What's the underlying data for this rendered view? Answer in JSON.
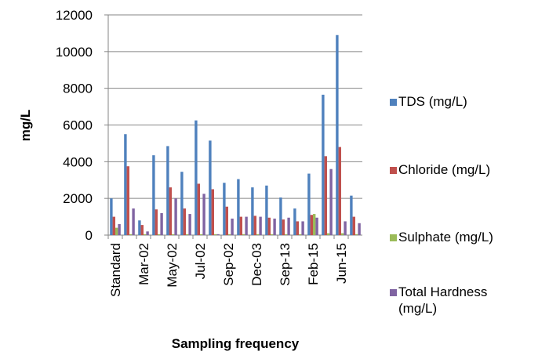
{
  "chart_data": {
    "type": "bar",
    "x_label": "Sampling frequency",
    "y_label": "mg/L",
    "categories": [
      "Standard",
      null,
      "Mar-02",
      null,
      "May-02",
      null,
      "Jul-02",
      null,
      "Sep-02",
      null,
      "Dec-03",
      null,
      "Sep-13",
      null,
      "Feb-15",
      null,
      "Jun-15",
      null
    ],
    "series": [
      {
        "name": "TDS (mg/L)",
        "color": "#4f81bd",
        "values": [
          2000,
          5500,
          800,
          4350,
          4850,
          3450,
          6250,
          5150,
          2850,
          3050,
          2600,
          2700,
          2050,
          1450,
          3350,
          7650,
          10900,
          2150
        ]
      },
      {
        "name": "Chloride (mg/L)",
        "color": "#c0504d",
        "values": [
          1000,
          3750,
          550,
          1400,
          2600,
          1450,
          2800,
          2500,
          1550,
          1000,
          1050,
          950,
          850,
          750,
          1100,
          4300,
          4800,
          1000
        ]
      },
      {
        "name": "Sulphate (mg/L)",
        "color": "#9bbb59",
        "values": [
          400,
          50,
          50,
          50,
          50,
          50,
          50,
          50,
          50,
          50,
          50,
          50,
          50,
          50,
          1150,
          100,
          100,
          50
        ]
      },
      {
        "name": "Total Hardness (mg/L)",
        "color": "#8064a2",
        "values": [
          600,
          1450,
          200,
          1200,
          2000,
          1150,
          2250,
          50,
          900,
          1000,
          1000,
          900,
          950,
          750,
          950,
          3600,
          750,
          650
        ]
      }
    ],
    "ylim": [
      0,
      12000
    ],
    "yticks": [
      0,
      2000,
      4000,
      6000,
      8000,
      10000,
      12000
    ],
    "grid": true,
    "legend": "right"
  }
}
